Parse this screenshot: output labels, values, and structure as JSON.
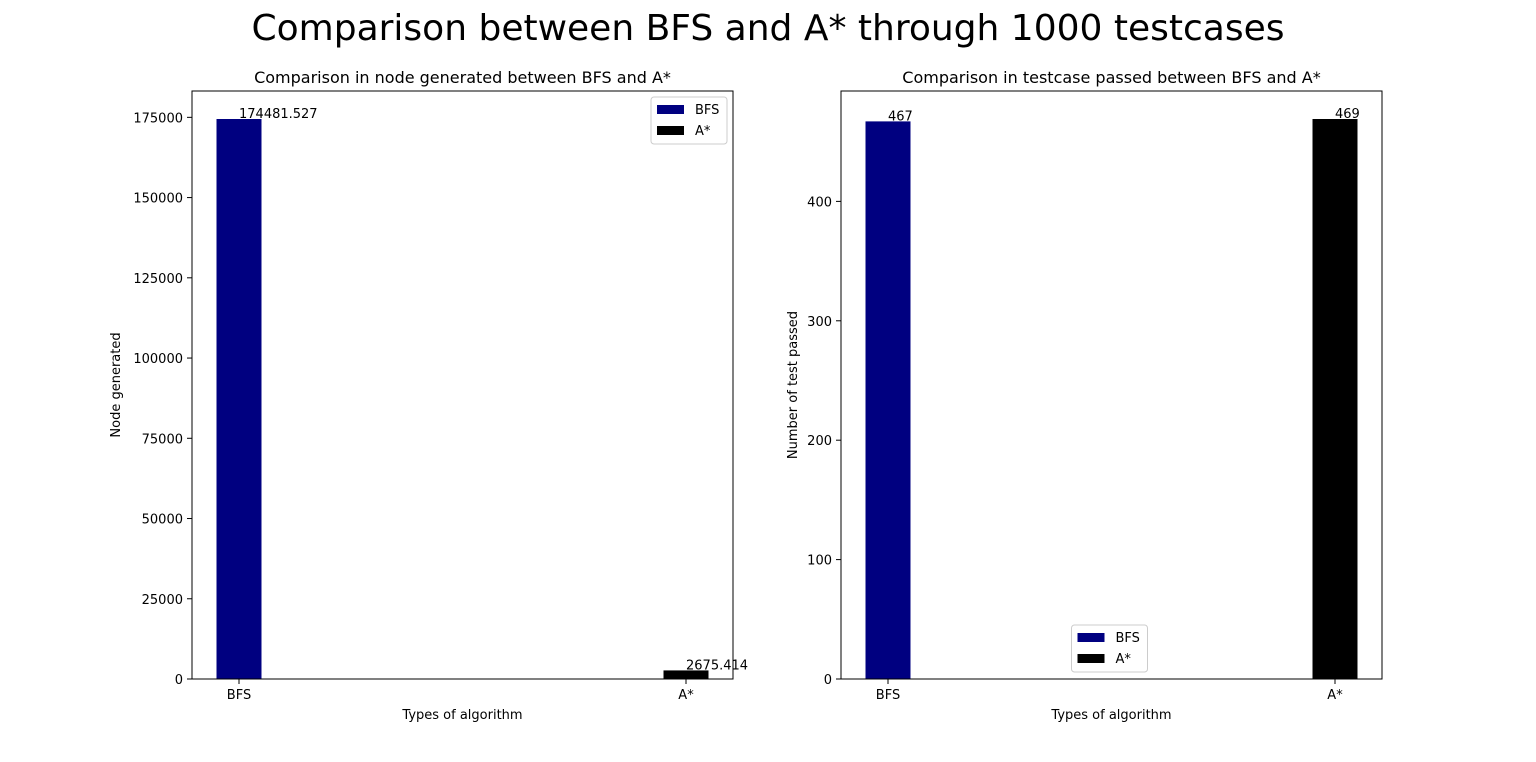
{
  "figure": {
    "title": "Comparison between BFS and A* through 1000 testcases"
  },
  "chart_data": [
    {
      "type": "bar",
      "title": "Comparison in node generated between BFS and A*",
      "xlabel": "Types of algorithm",
      "ylabel": "Node generated",
      "categories": [
        "BFS",
        "A*"
      ],
      "series": [
        {
          "name": "BFS",
          "color": "#000080",
          "values": [
            174481.527,
            null
          ]
        },
        {
          "name": "A*",
          "color": "#000000",
          "values": [
            null,
            2675.414
          ]
        }
      ],
      "data_labels": [
        "174481.527",
        "2675.414"
      ],
      "ylim": [
        0,
        183205.6
      ],
      "yticks": [
        0,
        25000,
        50000,
        75000,
        100000,
        125000,
        150000,
        175000
      ],
      "legend": "upper right",
      "grid": false
    },
    {
      "type": "bar",
      "title": "Comparison in testcase passed between BFS and A*",
      "xlabel": "Types of algorithm",
      "ylabel": "Number of test passed",
      "categories": [
        "BFS",
        "A*"
      ],
      "series": [
        {
          "name": "BFS",
          "color": "#000080",
          "values": [
            467,
            null
          ]
        },
        {
          "name": "A*",
          "color": "#000000",
          "values": [
            null,
            469
          ]
        }
      ],
      "data_labels": [
        "467",
        "469"
      ],
      "ylim": [
        0,
        492.45
      ],
      "yticks": [
        0,
        100,
        200,
        300,
        400
      ],
      "legend": "lower center",
      "grid": false
    }
  ]
}
